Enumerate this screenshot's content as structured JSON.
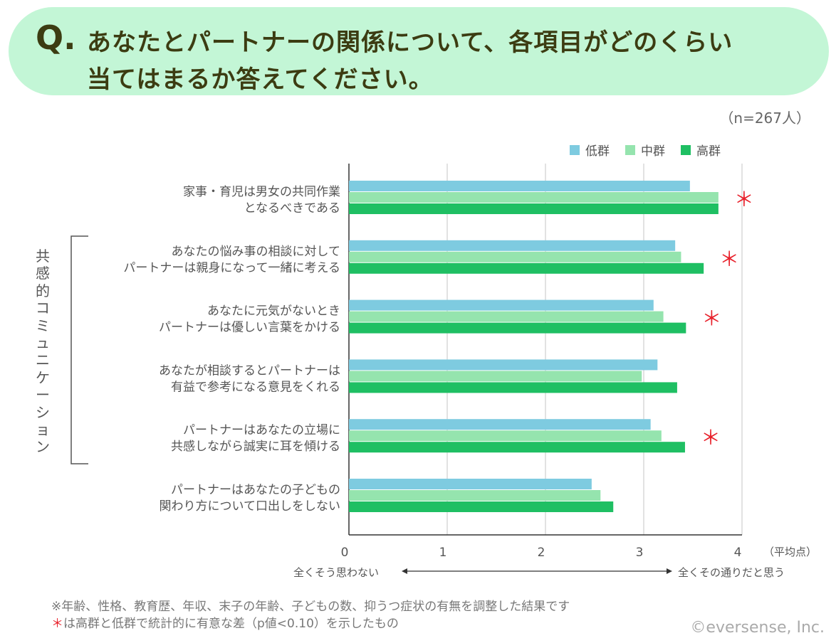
{
  "header": {
    "q_mark": "Q.",
    "title_line1": "あなたとパートナーの関係について、各項目がどのくらい",
    "title_line2": "当てはまるか答えてください。"
  },
  "sample_size": "（n=267人）",
  "legend": [
    {
      "label": "低群",
      "color": "#7ecbe0"
    },
    {
      "label": "中群",
      "color": "#95e4ae"
    },
    {
      "label": "高群",
      "color": "#1fbf63"
    }
  ],
  "side_label": "共感的コミュニケーション",
  "axis_unit": "（平均点）",
  "range_left": "全くそう思わない",
  "range_right": "全くその通りだと思う",
  "notes": {
    "line1": "※年齢、性格、教育歴、年収、末子の年齢、子どもの数、抑うつ症状の有無を調整した結果です",
    "star": "＊",
    "line2": "は高群と低群で統計的に有意な差（p値<0.10）を示したもの"
  },
  "copyright": "©eversense, Inc.",
  "colors": {
    "low": "#7ecbe0",
    "mid": "#95e4ae",
    "high": "#1fbf63",
    "significance": "#e8212b"
  },
  "chart_data": {
    "type": "bar",
    "orientation": "horizontal",
    "xlim": [
      0,
      4
    ],
    "x_ticks": [
      "0",
      "1",
      "2",
      "3",
      "4"
    ],
    "categories": [
      [
        "家事・育児は男女の共同作業",
        "となるべきである"
      ],
      [
        "あなたの悩み事の相談に対して",
        "パートナーは親身になって一緒に考える"
      ],
      [
        "あなたに元気がないとき",
        "パートナーは優しい言葉をかける"
      ],
      [
        "あなたが相談するとパートナーは",
        "有益で参考になる意見をくれる"
      ],
      [
        "パートナーはあなたの立場に",
        "共感しながら誠実に耳を傾ける"
      ],
      [
        "パートナーはあなたの子どもの",
        "関わり方について口出しをしない"
      ]
    ],
    "series": [
      {
        "name": "低群",
        "values": [
          3.47,
          3.32,
          3.1,
          3.14,
          3.07,
          2.47
        ]
      },
      {
        "name": "中群",
        "values": [
          3.76,
          3.38,
          3.2,
          2.98,
          3.18,
          2.56
        ]
      },
      {
        "name": "高群",
        "values": [
          3.76,
          3.61,
          3.43,
          3.34,
          3.42,
          2.69
        ]
      }
    ],
    "significance_marker": "＊",
    "significant": [
      true,
      true,
      true,
      false,
      true,
      false
    ],
    "grid": true,
    "legend_position": "top-right"
  }
}
